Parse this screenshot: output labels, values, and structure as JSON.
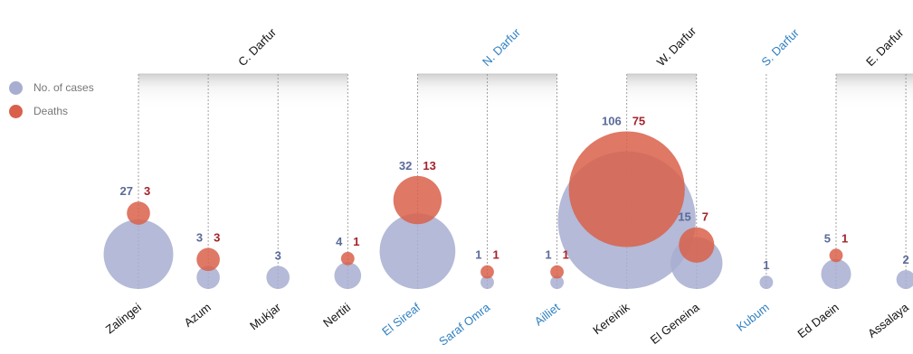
{
  "legend": {
    "cases_label": "No. of cases",
    "deaths_label": "Deaths"
  },
  "colors": {
    "cases": "#a7aed0",
    "deaths": "#d9604a",
    "cases_text": "#5a6a9a",
    "deaths_text": "#a3232a",
    "region_black": "#111111",
    "region_blue": "#2f7fc1"
  },
  "chart_data": {
    "type": "bubble",
    "regions": [
      {
        "name": "C. Darfur",
        "color": "black"
      },
      {
        "name": "N. Darfur",
        "color": "blue"
      },
      {
        "name": "W. Darfur",
        "color": "black"
      },
      {
        "name": "S. Darfur",
        "color": "blue"
      },
      {
        "name": "E. Darfur",
        "color": "black"
      }
    ],
    "localities": [
      {
        "name": "Zalingei",
        "region": "C. Darfur",
        "cases": 27,
        "deaths": 3,
        "color": "black"
      },
      {
        "name": "Azum",
        "region": "C. Darfur",
        "cases": 3,
        "deaths": 3,
        "color": "black"
      },
      {
        "name": "Mukjar",
        "region": "C. Darfur",
        "cases": 3,
        "deaths": null,
        "color": "black"
      },
      {
        "name": "Nertiti",
        "region": "C. Darfur",
        "cases": 4,
        "deaths": 1,
        "color": "black"
      },
      {
        "name": "El Sireaf",
        "region": "N. Darfur",
        "cases": 32,
        "deaths": 13,
        "color": "blue"
      },
      {
        "name": "Saraf Omra",
        "region": "N. Darfur",
        "cases": 1,
        "deaths": 1,
        "color": "blue"
      },
      {
        "name": "Ailliet",
        "region": "N. Darfur",
        "cases": 1,
        "deaths": 1,
        "color": "blue"
      },
      {
        "name": "Kereinik",
        "region": "W. Darfur",
        "cases": 106,
        "deaths": 75,
        "color": "black"
      },
      {
        "name": "El Geneina",
        "region": "W. Darfur",
        "cases": 15,
        "deaths": 7,
        "color": "black"
      },
      {
        "name": "Kubum",
        "region": "S. Darfur",
        "cases": 1,
        "deaths": null,
        "color": "blue"
      },
      {
        "name": "Ed Daein",
        "region": "E. Darfur",
        "cases": 5,
        "deaths": 1,
        "color": "black"
      },
      {
        "name": "Assalaya",
        "region": "E. Darfur",
        "cases": 2,
        "deaths": null,
        "color": "black"
      }
    ]
  }
}
